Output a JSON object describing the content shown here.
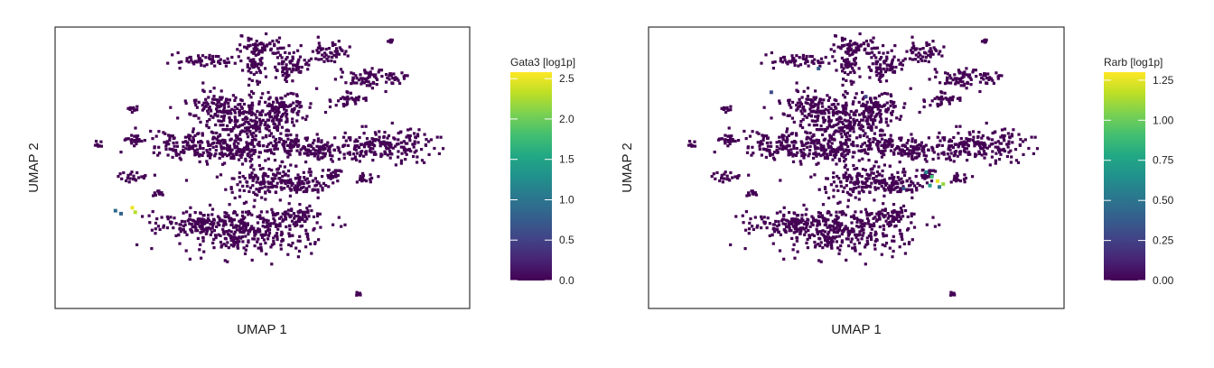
{
  "chart_data": [
    {
      "type": "scatter",
      "title": "",
      "xlabel": "UMAP 1",
      "ylabel": "UMAP 2",
      "colorbar": {
        "label": "Gata3 [log1p]",
        "range": [
          0,
          2.58
        ],
        "ticks": [
          "0.0",
          "0.5",
          "1.0",
          "1.5",
          "2.0",
          "2.5"
        ],
        "tick_values": [
          0,
          0.5,
          1.0,
          1.5,
          2.0,
          2.5
        ],
        "colormap": "viridis"
      },
      "highlights": [
        {
          "x": -7.8,
          "y": -4.4,
          "value": 0.9
        },
        {
          "x": -7.5,
          "y": -4.6,
          "value": 0.8
        },
        {
          "x": -6.9,
          "y": -4.2,
          "value": 2.5
        },
        {
          "x": -6.75,
          "y": -4.5,
          "value": 2.3
        }
      ]
    },
    {
      "type": "scatter",
      "title": "",
      "xlabel": "UMAP 1",
      "ylabel": "UMAP 2",
      "colorbar": {
        "label": "Rarb [log1p]",
        "range": [
          0,
          1.3
        ],
        "ticks": [
          "0.00",
          "0.25",
          "0.50",
          "0.75",
          "1.00",
          "1.25"
        ],
        "tick_values": [
          0,
          0.25,
          0.5,
          0.75,
          1.0,
          1.25
        ],
        "colormap": "viridis"
      },
      "highlights": [
        {
          "x": 3.7,
          "y": -1.8,
          "value": 0.6
        },
        {
          "x": 4.0,
          "y": -2.1,
          "value": 0.9
        },
        {
          "x": 4.3,
          "y": -2.4,
          "value": 1.25
        },
        {
          "x": 4.6,
          "y": -2.6,
          "value": 1.1
        },
        {
          "x": 3.9,
          "y": -2.7,
          "value": 0.7
        },
        {
          "x": 4.4,
          "y": -2.8,
          "value": 0.5
        },
        {
          "x": 2.5,
          "y": -2.9,
          "value": 0.35
        },
        {
          "x": -2.0,
          "y": 5.2,
          "value": 0.4
        },
        {
          "x": -4.5,
          "y": 3.6,
          "value": 0.3
        },
        {
          "x": 0.5,
          "y": 3.3,
          "value": 0.25
        }
      ]
    }
  ]
}
